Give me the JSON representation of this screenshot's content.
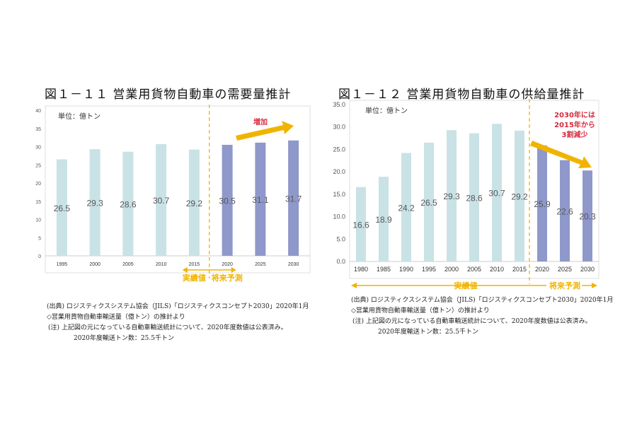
{
  "charts": [
    {
      "title": "図１－１１ 営業用貨物自動車の需要量推計",
      "unit": "単位：億トン",
      "annotation": "増加",
      "actual_label": "実績値",
      "forecast_label": "将来予測",
      "notes": [
        "(出典) ロジスティクスシステム協会（JILS)「ロジスティクスコンセプト2030」2020年1月",
        "◇営業用貨物自動車輸送量（億トン）の推計より",
        "(注) 上記図の元になっている自動車輸送統計について、2020年度数値は公表済み。",
        "2020年度輸送トン数：25.5千トン"
      ]
    },
    {
      "title": "図１－１２ 営業用貨物自動車の供給量推計",
      "unit": "単位：億トン",
      "annotation_lines": [
        "2030年には",
        "2015年から",
        "3割減少"
      ],
      "actual_label": "実績値",
      "forecast_label": "将来予測",
      "notes": [
        "(出典) ロジスティクスシステム協会（JILS)「ロジスティクスコンセプト2030」2020年1月",
        "◇営業用貨物自動車輸送量（億トン）の推計より",
        "(注) 上記図の元になっている自動車輸送統計について、2020年度数値は公表済み。",
        "2020年度輸送トン数：25.5千トン"
      ]
    }
  ],
  "colors": {
    "actual": "#c9e2e5",
    "forecast": "#8f98ca",
    "divider": "#f0b400",
    "arrow": "#f0b400",
    "callout": "#d8283c"
  },
  "chart_data": [
    {
      "type": "bar",
      "title": "図１－１１ 営業用貨物自動車の需要量推計",
      "categories": [
        "1995",
        "2000",
        "2005",
        "2010",
        "2015",
        "2020",
        "2025",
        "2030"
      ],
      "values": [
        26.5,
        29.3,
        28.6,
        30.7,
        29.2,
        30.5,
        31.1,
        31.7
      ],
      "value_labels": [
        "26.5",
        "29.3",
        "28.6",
        "30.7",
        "29.2",
        "30.5",
        "31.1",
        "31.7"
      ],
      "forecast_from": "2020",
      "ylim": [
        0,
        40
      ],
      "yticks": [
        "0",
        "5",
        "10",
        "15",
        "20",
        "25",
        "30",
        "35",
        "40"
      ],
      "grid": false
    },
    {
      "type": "bar",
      "title": "図１－１２ 営業用貨物自動車の供給量推計",
      "categories": [
        "1980",
        "1985",
        "1990",
        "1995",
        "2000",
        "2005",
        "2010",
        "2015",
        "2020",
        "2025",
        "2030"
      ],
      "values": [
        16.6,
        18.9,
        24.2,
        26.5,
        29.3,
        28.6,
        30.7,
        29.2,
        25.9,
        22.6,
        20.3
      ],
      "value_labels": [
        "16.6",
        "18.9",
        "24.2",
        "26.5",
        "29.3",
        "28.6",
        "30.7",
        "29.2",
        "25.9",
        "22.6",
        "20.3"
      ],
      "forecast_from": "2020",
      "ylim": [
        0,
        35
      ],
      "yticks": [
        "0.0",
        "5.0",
        "10.0",
        "15.0",
        "20.0",
        "25.0",
        "30.0",
        "35.0"
      ],
      "grid": false
    }
  ]
}
